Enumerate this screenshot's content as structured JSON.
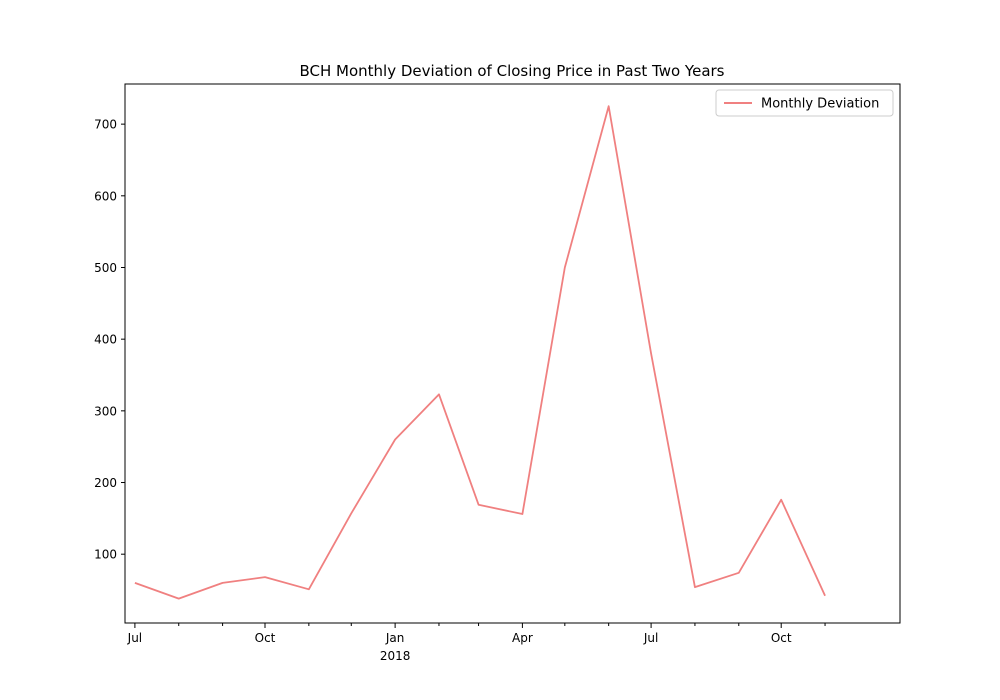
{
  "chart_data": {
    "type": "line",
    "title": "BCH Monthly Deviation of Closing Price in Past Two Years",
    "xlabel": "",
    "ylabel": "",
    "x": [
      "2017-07",
      "2017-08",
      "2017-09",
      "2017-10",
      "2017-11",
      "2017-12",
      "2018-01",
      "2018-02",
      "2018-03",
      "2018-04",
      "2018-05",
      "2018-06",
      "2018-07",
      "2018-08",
      "2018-09",
      "2018-10",
      "2018-11"
    ],
    "series": [
      {
        "name": "Monthly Deviation",
        "color": "#f08080",
        "values": [
          60,
          38,
          60,
          68,
          51,
          157,
          260,
          323,
          169,
          156,
          500,
          725,
          380,
          54,
          74,
          176,
          42
        ]
      }
    ],
    "xlim": [
      "2017-06-24",
      "2018-12-24"
    ],
    "ylim": [
      4,
      756
    ],
    "y_ticks": [
      100,
      200,
      300,
      400,
      500,
      600,
      700
    ],
    "x_major_ticks": [
      {
        "x": "2017-07",
        "label": "Jul",
        "sublabel": ""
      },
      {
        "x": "2017-10",
        "label": "Oct",
        "sublabel": ""
      },
      {
        "x": "2018-01",
        "label": "Jan",
        "sublabel": "2018"
      },
      {
        "x": "2018-04",
        "label": "Apr",
        "sublabel": ""
      },
      {
        "x": "2018-07",
        "label": "Jul",
        "sublabel": ""
      },
      {
        "x": "2018-10",
        "label": "Oct",
        "sublabel": ""
      }
    ],
    "x_minor_ticks": [
      "2017-08",
      "2017-09",
      "2017-11",
      "2017-12",
      "2018-02",
      "2018-03",
      "2018-05",
      "2018-06",
      "2018-08",
      "2018-09",
      "2018-11"
    ],
    "grid": false,
    "legend_position": "top-right"
  }
}
